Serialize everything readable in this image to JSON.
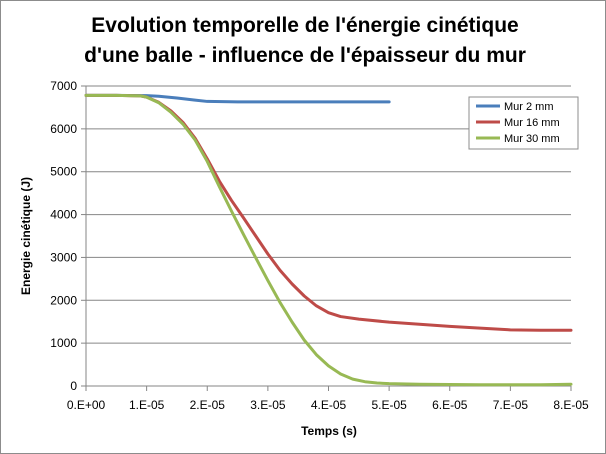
{
  "chart_data": {
    "type": "line",
    "title_lines": [
      "Evolution temporelle de l'énergie cinétique",
      "d'une balle - influence de l'épaisseur du mur"
    ],
    "xlabel": "Temps (s)",
    "ylabel": "Energie cinétique (J)",
    "xlim": [
      0,
      8e-05
    ],
    "ylim": [
      0,
      7000
    ],
    "x_ticks": [
      0,
      1e-05,
      2e-05,
      3e-05,
      4e-05,
      5e-05,
      6e-05,
      7e-05,
      8e-05
    ],
    "x_tick_labels": [
      "0.E+00",
      "1.E-05",
      "2.E-05",
      "3.E-05",
      "4.E-05",
      "5.E-05",
      "6.E-05",
      "7.E-05",
      "8.E-05"
    ],
    "y_ticks": [
      0,
      1000,
      2000,
      3000,
      4000,
      5000,
      6000,
      7000
    ],
    "y_tick_labels": [
      "0",
      "1000",
      "2000",
      "3000",
      "4000",
      "5000",
      "6000",
      "7000"
    ],
    "grid": "horizontal",
    "legend_position": "top-right",
    "series": [
      {
        "name": "Mur 2 mm",
        "color": "#4a7ebb",
        "x": [
          0,
          5e-06,
          1e-05,
          1.2e-05,
          1.5e-05,
          1.8e-05,
          2e-05,
          2.5e-05,
          3e-05,
          4e-05,
          5e-05
        ],
        "y": [
          6780,
          6780,
          6775,
          6760,
          6720,
          6670,
          6640,
          6630,
          6630,
          6630,
          6630
        ]
      },
      {
        "name": "Mur 16 mm",
        "color": "#be4b48",
        "x": [
          0,
          5e-06,
          9e-06,
          1e-05,
          1.2e-05,
          1.4e-05,
          1.6e-05,
          1.8e-05,
          2e-05,
          2.2e-05,
          2.4e-05,
          2.6e-05,
          2.8e-05,
          3e-05,
          3.2e-05,
          3.4e-05,
          3.6e-05,
          3.8e-05,
          4e-05,
          4.2e-05,
          4.5e-05,
          5e-05,
          5.5e-05,
          6e-05,
          6.5e-05,
          7e-05,
          7.5e-05,
          8e-05
        ],
        "y": [
          6780,
          6780,
          6770,
          6740,
          6620,
          6420,
          6150,
          5780,
          5300,
          4780,
          4330,
          3920,
          3500,
          3080,
          2700,
          2380,
          2100,
          1870,
          1710,
          1620,
          1560,
          1490,
          1440,
          1390,
          1350,
          1310,
          1300,
          1300
        ]
      },
      {
        "name": "Mur 30 mm",
        "color": "#98b954",
        "x": [
          0,
          5e-06,
          9e-06,
          1e-05,
          1.2e-05,
          1.4e-05,
          1.6e-05,
          1.8e-05,
          2e-05,
          2.2e-05,
          2.4e-05,
          2.6e-05,
          2.8e-05,
          3e-05,
          3.2e-05,
          3.4e-05,
          3.6e-05,
          3.8e-05,
          4e-05,
          4.2e-05,
          4.4e-05,
          4.6e-05,
          4.8e-05,
          5e-05,
          5.5e-05,
          6e-05,
          6.5e-05,
          7e-05,
          7.5e-05,
          8e-05
        ],
        "y": [
          6780,
          6780,
          6770,
          6740,
          6610,
          6390,
          6110,
          5740,
          5240,
          4650,
          4080,
          3530,
          2990,
          2460,
          1950,
          1490,
          1070,
          730,
          470,
          280,
          160,
          100,
          70,
          55,
          40,
          35,
          30,
          30,
          30,
          40
        ]
      }
    ]
  }
}
